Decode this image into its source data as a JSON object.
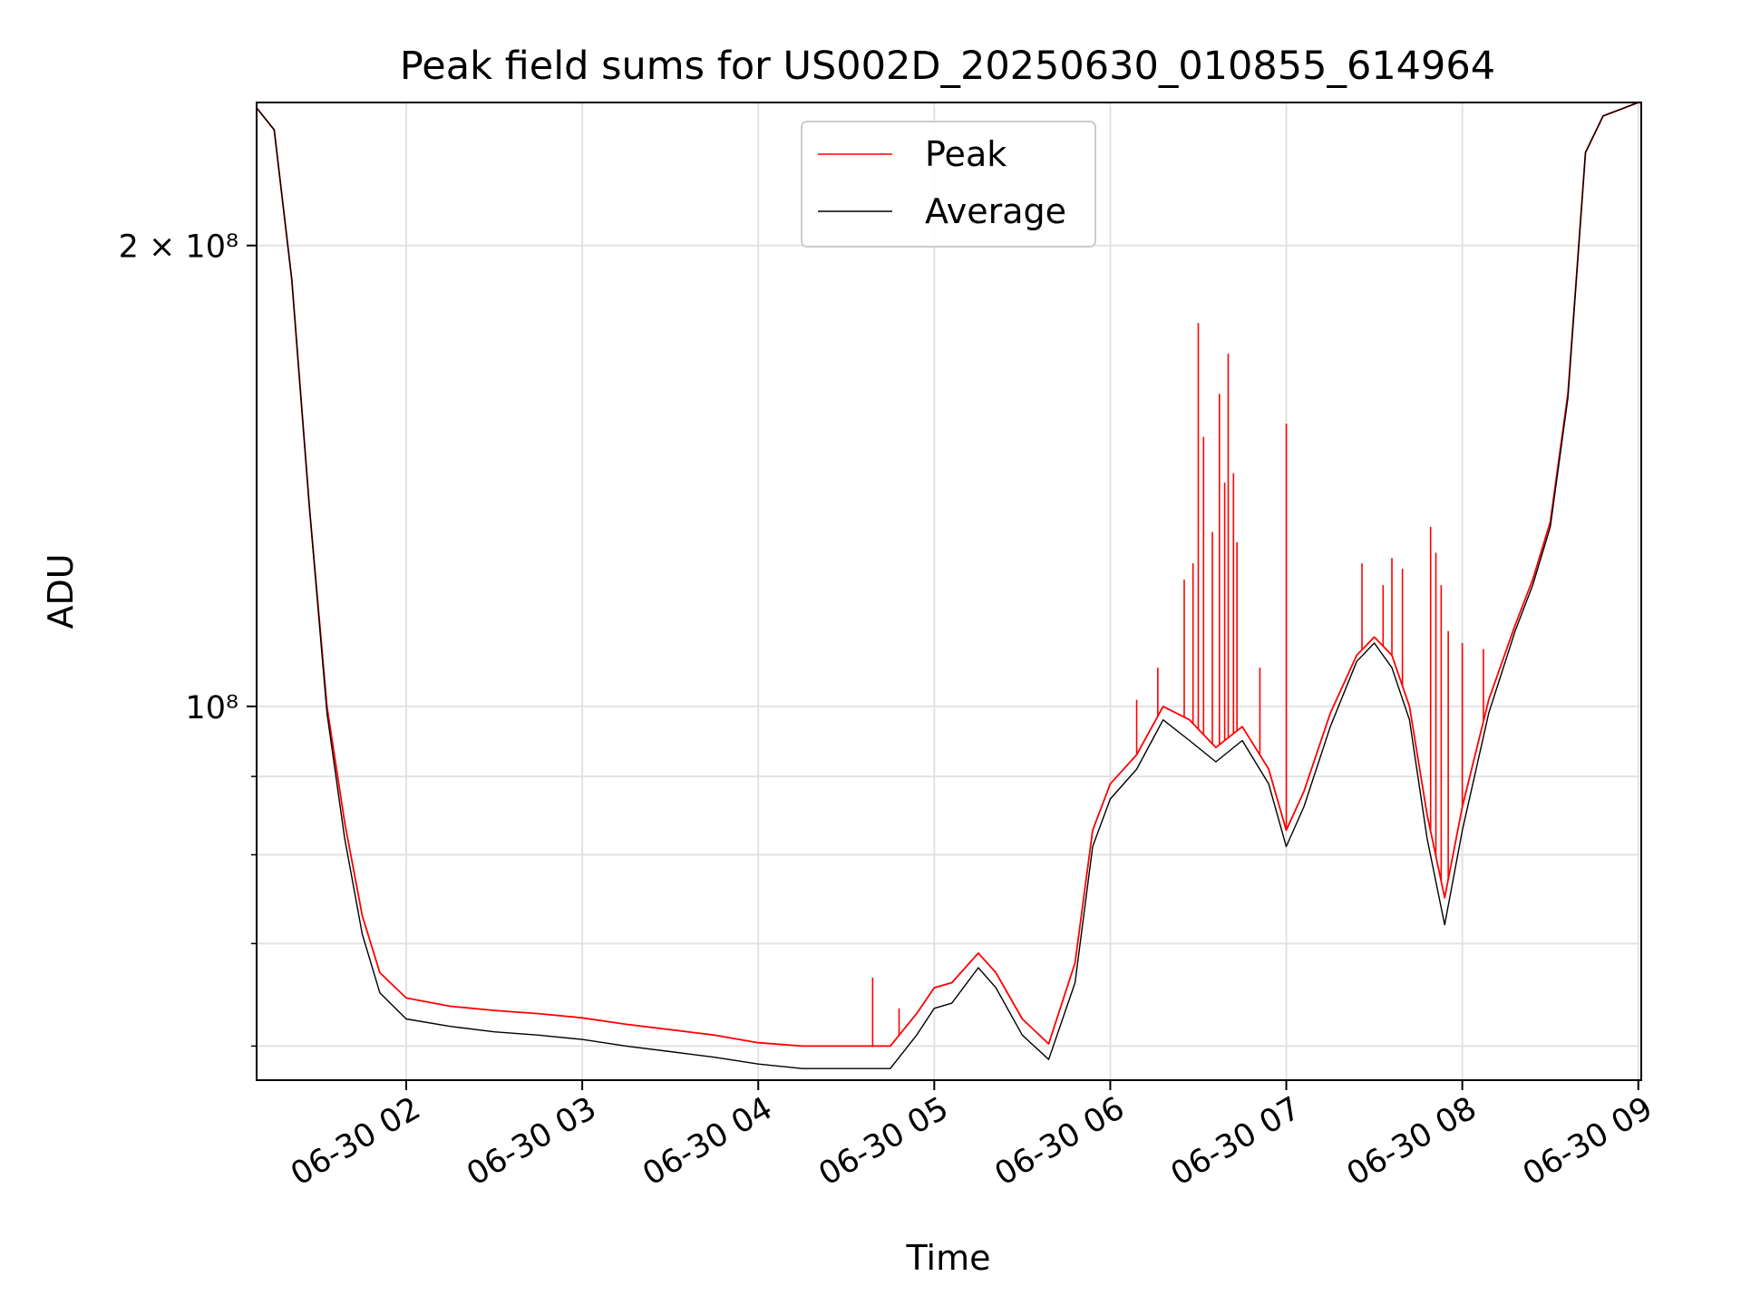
{
  "chart_data": {
    "type": "line",
    "title": "Peak field sums for US002D_20250630_010855_614964",
    "xlabel": "Time",
    "ylabel": "ADU",
    "yscale": "log",
    "xlim": [
      "2025-06-30 01:09",
      "2025-06-30 09:01"
    ],
    "ylim": [
      57000000,
      248000000
    ],
    "grid": true,
    "legend_position": "top-center",
    "x_ticks": [
      "06-30 02",
      "06-30 03",
      "06-30 04",
      "06-30 05",
      "06-30 06",
      "06-30 07",
      "06-30 08",
      "06-30 09"
    ],
    "y_tick_labels": [
      "2 × 10⁸",
      "10⁸"
    ],
    "y_ticks_major": [
      200000000,
      100000000
    ],
    "y_ticks_minor": [
      60000000,
      70000000,
      80000000,
      90000000
    ],
    "x_hours": [
      1.15,
      1.25,
      1.35,
      1.45,
      1.55,
      1.65,
      1.75,
      1.85,
      2.0,
      2.25,
      2.5,
      2.75,
      3.0,
      3.25,
      3.5,
      3.75,
      4.0,
      4.25,
      4.5,
      4.75,
      4.9,
      5.0,
      5.1,
      5.25,
      5.35,
      5.5,
      5.65,
      5.8,
      5.9,
      6.0,
      6.15,
      6.3,
      6.45,
      6.6,
      6.75,
      6.9,
      7.0,
      7.1,
      7.25,
      7.4,
      7.5,
      7.6,
      7.7,
      7.8,
      7.9,
      8.0,
      8.15,
      8.3,
      8.4,
      8.5,
      8.6,
      8.7,
      8.8,
      9.0
    ],
    "series": [
      {
        "name": "Peak",
        "color": "#ff0000",
        "values": [
          246000000,
          238000000,
          190000000,
          135000000,
          100000000,
          84000000,
          73000000,
          67000000,
          64500000,
          63700000,
          63300000,
          63000000,
          62600000,
          62000000,
          61500000,
          61000000,
          60300000,
          60000000,
          60000000,
          60000000,
          63000000,
          65500000,
          66000000,
          69000000,
          67000000,
          62500000,
          60200000,
          68000000,
          83000000,
          89000000,
          93000000,
          100000000,
          98000000,
          94000000,
          97000000,
          91000000,
          83000000,
          88000000,
          99000000,
          108000000,
          111000000,
          108000000,
          100000000,
          85000000,
          75000000,
          86000000,
          101000000,
          113000000,
          121000000,
          132000000,
          160000000,
          230000000,
          243000000,
          248000000
        ],
        "spikes": [
          {
            "x": 4.65,
            "y": 66500000
          },
          {
            "x": 4.8,
            "y": 63500000
          },
          {
            "x": 6.15,
            "y": 101000000
          },
          {
            "x": 6.27,
            "y": 106000000
          },
          {
            "x": 6.42,
            "y": 121000000
          },
          {
            "x": 6.47,
            "y": 124000000
          },
          {
            "x": 6.5,
            "y": 178000000
          },
          {
            "x": 6.53,
            "y": 150000000
          },
          {
            "x": 6.58,
            "y": 130000000
          },
          {
            "x": 6.62,
            "y": 160000000
          },
          {
            "x": 6.65,
            "y": 140000000
          },
          {
            "x": 6.67,
            "y": 170000000
          },
          {
            "x": 6.7,
            "y": 142000000
          },
          {
            "x": 6.72,
            "y": 128000000
          },
          {
            "x": 6.85,
            "y": 106000000
          },
          {
            "x": 7.0,
            "y": 153000000
          },
          {
            "x": 7.43,
            "y": 124000000
          },
          {
            "x": 7.55,
            "y": 120000000
          },
          {
            "x": 7.6,
            "y": 125000000
          },
          {
            "x": 7.66,
            "y": 123000000
          },
          {
            "x": 7.82,
            "y": 131000000
          },
          {
            "x": 7.85,
            "y": 126000000
          },
          {
            "x": 7.88,
            "y": 120000000
          },
          {
            "x": 7.92,
            "y": 112000000
          },
          {
            "x": 8.0,
            "y": 110000000
          },
          {
            "x": 8.12,
            "y": 109000000
          }
        ]
      },
      {
        "name": "Average",
        "color": "#000000",
        "values": [
          246000000,
          238000000,
          190000000,
          135000000,
          99000000,
          82000000,
          71000000,
          65000000,
          62500000,
          61800000,
          61300000,
          61000000,
          60600000,
          60000000,
          59500000,
          59000000,
          58400000,
          58000000,
          58000000,
          58000000,
          61000000,
          63500000,
          64000000,
          67500000,
          65500000,
          61000000,
          58800000,
          66000000,
          81000000,
          87000000,
          91000000,
          98000000,
          95000000,
          92000000,
          95000000,
          89000000,
          81000000,
          86000000,
          97000000,
          107000000,
          110000000,
          106000000,
          98000000,
          82000000,
          72000000,
          83000000,
          99000000,
          112000000,
          120000000,
          131000000,
          159000000,
          230000000,
          243000000,
          248000000
        ]
      }
    ]
  }
}
